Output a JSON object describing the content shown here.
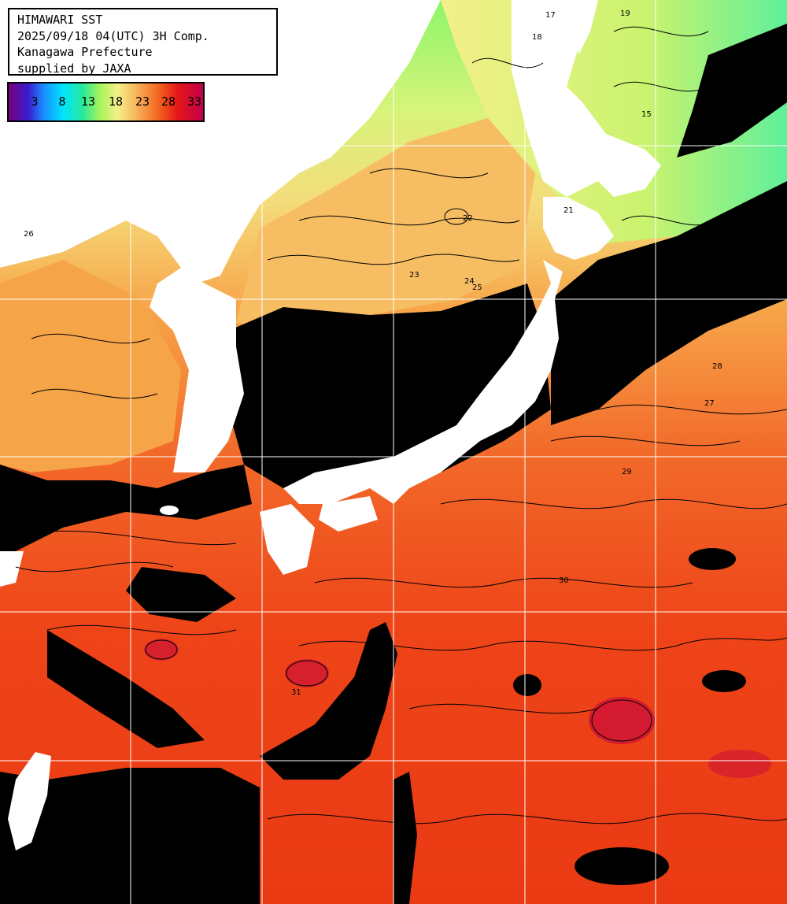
{
  "header": {
    "line1": "HIMAWARI SST",
    "line2": "2025/09/18 04(UTC) 3H Comp.",
    "line3": "Kanagawa Prefecture",
    "line4": "supplied by JAXA"
  },
  "legend": {
    "labels": [
      "3",
      "8",
      "13",
      "18",
      "23",
      "28",
      "33"
    ]
  },
  "map_colors": {
    "land": "#ffffff",
    "cloud_mask": "#000000",
    "grid": "#ffffff",
    "contour": "#000000",
    "sst_cool": "#8cf56a",
    "sst_mild": "#f4f08a",
    "sst_warm": "#f7a64a",
    "sst_hot": "#ee4418",
    "sst_max": "#c80a3c"
  },
  "contour_labels": [
    {
      "text": "17"
    },
    {
      "text": "19"
    },
    {
      "text": "18"
    },
    {
      "text": "15"
    },
    {
      "text": "21"
    },
    {
      "text": "22"
    },
    {
      "text": "23"
    },
    {
      "text": "24"
    },
    {
      "text": "25"
    },
    {
      "text": "26"
    },
    {
      "text": "27"
    },
    {
      "text": "28"
    },
    {
      "text": "29"
    },
    {
      "text": "30"
    },
    {
      "text": "31"
    }
  ]
}
